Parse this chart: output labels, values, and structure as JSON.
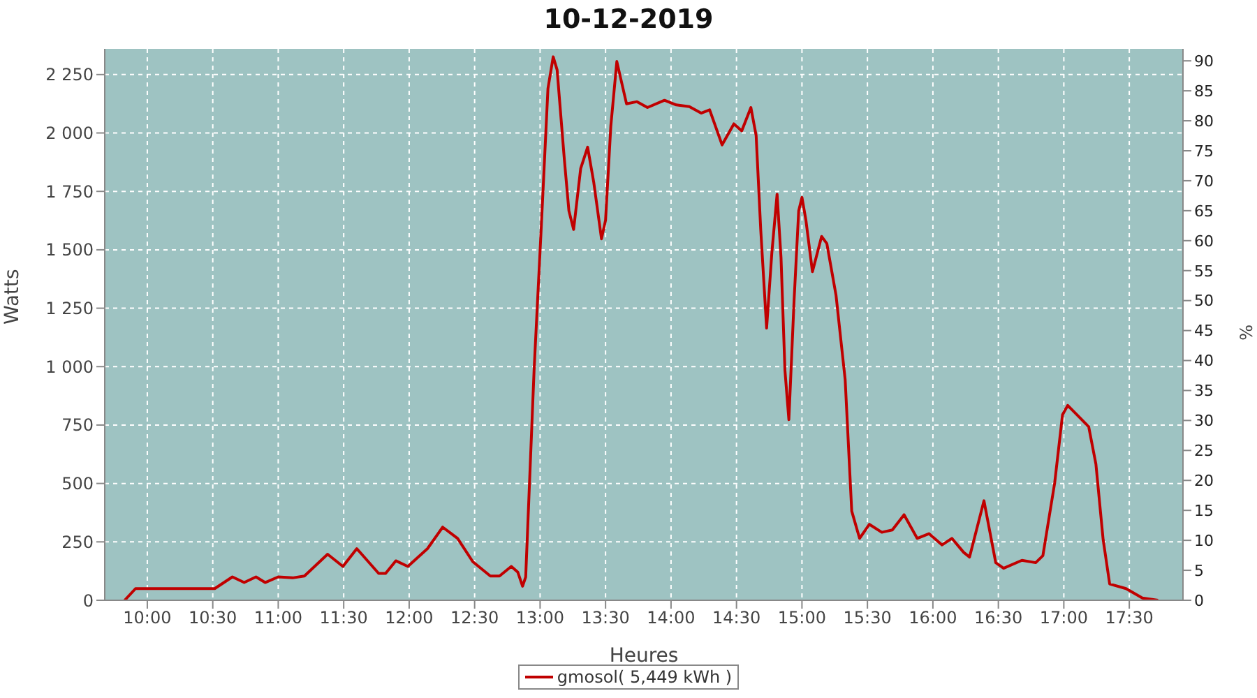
{
  "chart_data": {
    "type": "line",
    "title": "10-12-2019",
    "xlabel": "Heures",
    "ylabel": "Watts",
    "y2label": "%",
    "xlim": [
      9.675,
      17.91
    ],
    "ylim": [
      0,
      2360
    ],
    "y2lim": [
      0,
      92
    ],
    "xticks": [
      {
        "value": 10,
        "label": "10:00"
      },
      {
        "value": 10.5,
        "label": "10:30"
      },
      {
        "value": 11,
        "label": "11:00"
      },
      {
        "value": 11.5,
        "label": "11:30"
      },
      {
        "value": 12,
        "label": "12:00"
      },
      {
        "value": 12.5,
        "label": "12:30"
      },
      {
        "value": 13,
        "label": "13:00"
      },
      {
        "value": 13.5,
        "label": "13:30"
      },
      {
        "value": 14,
        "label": "14:00"
      },
      {
        "value": 14.5,
        "label": "14:30"
      },
      {
        "value": 15,
        "label": "15:00"
      },
      {
        "value": 15.5,
        "label": "15:30"
      },
      {
        "value": 16,
        "label": "16:00"
      },
      {
        "value": 16.5,
        "label": "16:30"
      },
      {
        "value": 17,
        "label": "17:00"
      },
      {
        "value": 17.5,
        "label": "17:30"
      }
    ],
    "yticks": [
      0,
      250,
      500,
      750,
      {
        "value": 1000,
        "label": "1 000"
      },
      {
        "value": 1250,
        "label": "1 250"
      },
      {
        "value": 1500,
        "label": "1 500"
      },
      {
        "value": 1750,
        "label": "1 750"
      },
      {
        "value": 2000,
        "label": "2 000"
      },
      {
        "value": 2250,
        "label": "2 250"
      }
    ],
    "y2ticks": [
      0,
      5,
      10,
      15,
      20,
      25,
      30,
      35,
      40,
      45,
      50,
      55,
      60,
      65,
      70,
      75,
      80,
      85,
      90
    ],
    "grid": true,
    "legend": "bottom",
    "marker": "none",
    "line_style": "solid",
    "series": [
      {
        "name": "gmosol( 5,449 kWh )",
        "color": "#c00000",
        "x": [
          9.827,
          9.91,
          10.515,
          10.65,
          10.74,
          10.83,
          10.9,
          11.0,
          11.11,
          11.2,
          11.377,
          11.494,
          11.6,
          11.767,
          11.82,
          11.898,
          11.99,
          12.14,
          12.256,
          12.37,
          12.486,
          12.62,
          12.69,
          12.78,
          12.83,
          12.866,
          12.89,
          12.954,
          13.008,
          13.06,
          13.1,
          13.13,
          13.185,
          13.22,
          13.256,
          13.31,
          13.363,
          13.41,
          13.469,
          13.5,
          13.54,
          13.586,
          13.66,
          13.74,
          13.82,
          13.95,
          14.04,
          14.14,
          14.23,
          14.295,
          14.39,
          14.48,
          14.54,
          14.61,
          14.65,
          14.685,
          14.73,
          14.77,
          14.81,
          14.84,
          14.87,
          14.9,
          14.94,
          14.975,
          15.0,
          15.03,
          15.08,
          15.15,
          15.19,
          15.26,
          15.33,
          15.38,
          15.44,
          15.515,
          15.61,
          15.69,
          15.78,
          15.88,
          15.97,
          16.07,
          16.145,
          16.235,
          16.28,
          16.39,
          16.48,
          16.54,
          16.68,
          16.785,
          16.84,
          16.93,
          16.99,
          17.03,
          17.13,
          17.19,
          17.245,
          17.3,
          17.35,
          17.475,
          17.6,
          17.72
        ],
        "values": [
          0,
          50,
          50,
          100,
          76,
          100,
          76,
          100,
          96,
          104,
          197,
          145,
          221,
          115,
          115,
          169,
          145,
          221,
          313,
          265,
          165,
          104,
          104,
          145,
          120,
          60,
          100,
          984,
          1587,
          2190,
          2326,
          2270,
          1888,
          1667,
          1587,
          1848,
          1939,
          1788,
          1547,
          1627,
          2029,
          2306,
          2125,
          2134,
          2109,
          2140,
          2120,
          2113,
          2085,
          2099,
          1949,
          2039,
          2009,
          2109,
          1989,
          1587,
          1165,
          1487,
          1738,
          1467,
          984,
          773,
          1286,
          1667,
          1724,
          1627,
          1406,
          1557,
          1527,
          1306,
          944,
          382,
          265,
          325,
          291,
          301,
          366,
          265,
          285,
          237,
          265,
          205,
          185,
          426,
          161,
          137,
          171,
          161,
          191,
          502,
          794,
          834,
          777,
          743,
          583,
          261,
          70,
          50,
          10,
          0
        ]
      }
    ]
  }
}
